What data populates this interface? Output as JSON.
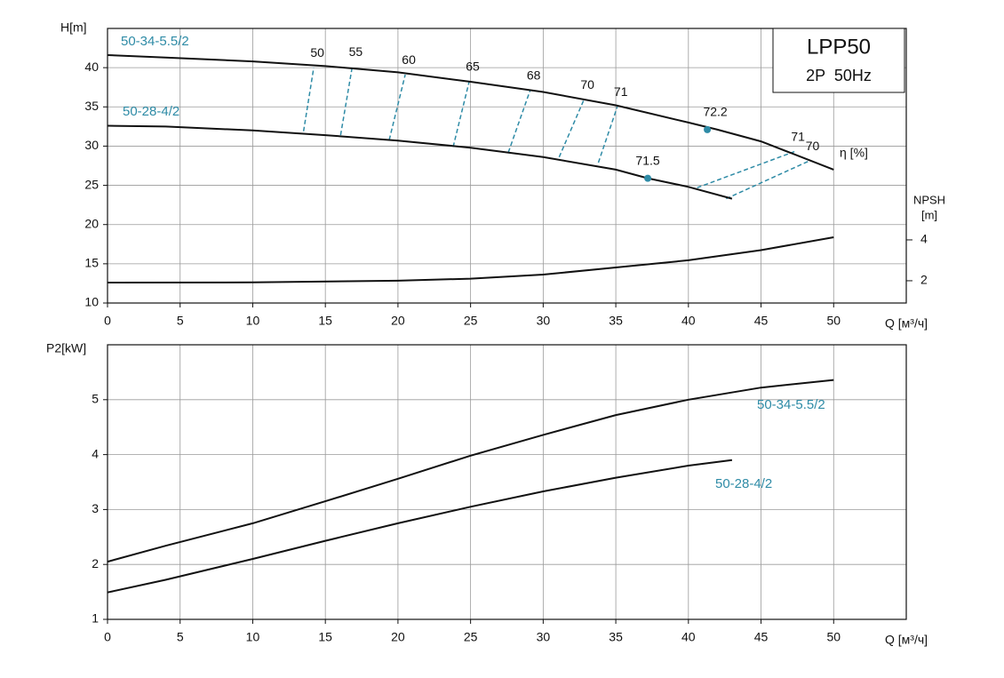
{
  "chart_data": [
    {
      "type": "line",
      "title": "LPP50",
      "subtitle": "2P  50Hz",
      "ylabel": "H[m]",
      "xlabel": "Q [м³/ч]",
      "xlim": [
        0,
        55
      ],
      "xticks": [
        0,
        5,
        10,
        15,
        20,
        25,
        30,
        35,
        40,
        45,
        50
      ],
      "ylim": [
        10,
        45
      ],
      "yticks": [
        10,
        15,
        20,
        25,
        30,
        35,
        40
      ],
      "y2label": "NPSH",
      "y2unit": "[m]",
      "y2lim": [
        0.91,
        14.35
      ],
      "y2ticks": [
        2,
        4
      ],
      "grid": true,
      "series": [
        {
          "name": "50-34-5.5/2",
          "color": "#111111",
          "label_color": "#2e8ba6",
          "x": [
            0,
            4,
            10,
            15,
            20,
            25,
            30,
            35,
            40,
            42,
            45,
            50
          ],
          "values": [
            41.6,
            41.3,
            40.8,
            40.2,
            39.4,
            38.2,
            36.9,
            35.2,
            33.0,
            32.1,
            30.6,
            27.0
          ]
        },
        {
          "name": "50-28-4/2",
          "color": "#111111",
          "label_color": "#2e8ba6",
          "x": [
            0,
            4,
            10,
            15,
            20,
            25,
            30,
            35,
            37.2,
            40,
            43
          ],
          "values": [
            32.6,
            32.5,
            32.0,
            31.4,
            30.7,
            29.8,
            28.6,
            27.0,
            25.9,
            24.8,
            23.3
          ]
        },
        {
          "axis": "y2",
          "color": "#111111",
          "x": [
            0,
            10,
            20,
            25,
            30,
            35,
            40,
            45,
            50
          ],
          "values": [
            1.91,
            1.92,
            2.0,
            2.1,
            2.3,
            2.65,
            3.0,
            3.5,
            4.13
          ]
        }
      ],
      "efficiency_label": "η [%]",
      "efficiency_color": "#2e8ba6",
      "efficiency_lines": [
        {
          "value": 50,
          "x": [
            13.5,
            14.2
          ],
          "y": [
            31.9,
            40.0
          ]
        },
        {
          "value": 55,
          "x": [
            16.05,
            16.85
          ],
          "y": [
            31.4,
            40.1
          ]
        },
        {
          "value": 60,
          "x": [
            19.4,
            20.5
          ],
          "y": [
            30.8,
            39.1
          ]
        },
        {
          "value": 65,
          "x": [
            23.8,
            24.9
          ],
          "y": [
            29.9,
            38.2
          ]
        },
        {
          "value": 68,
          "x": [
            27.6,
            29.1
          ],
          "y": [
            29.2,
            37.1
          ]
        },
        {
          "value": 70,
          "x": [
            31.1,
            32.8
          ],
          "y": [
            28.6,
            35.9
          ]
        },
        {
          "value": 71,
          "x": [
            33.8,
            35.1
          ],
          "y": [
            27.9,
            35.0
          ]
        },
        {
          "value": 71,
          "x": [
            40.6,
            47.3
          ],
          "y": [
            24.7,
            29.3
          ]
        },
        {
          "value": 70,
          "x": [
            42.6,
            48.3
          ],
          "y": [
            23.3,
            28.1
          ]
        }
      ],
      "best_points": [
        {
          "value": 72.2,
          "x": 41.3,
          "y": 32.1
        },
        {
          "value": 71.5,
          "x": 37.2,
          "y": 25.9
        }
      ]
    },
    {
      "type": "line",
      "ylabel": "P2[kW]",
      "xlabel": "Q [м³/ч]",
      "xlim": [
        0,
        55
      ],
      "xticks": [
        0,
        5,
        10,
        15,
        20,
        25,
        30,
        35,
        40,
        45,
        50
      ],
      "ylim": [
        1,
        6
      ],
      "yticks": [
        1,
        2,
        3,
        4,
        5
      ],
      "grid": true,
      "series": [
        {
          "name": "50-34-5.5/2",
          "color": "#111111",
          "label_color": "#2e8ba6",
          "x": [
            0,
            4,
            10,
            15,
            20,
            25,
            30,
            35,
            40,
            45,
            50
          ],
          "values": [
            2.05,
            2.34,
            2.75,
            3.15,
            3.56,
            3.98,
            4.36,
            4.72,
            5.0,
            5.22,
            5.36
          ]
        },
        {
          "name": "50-28-4/2",
          "color": "#111111",
          "label_color": "#2e8ba6",
          "x": [
            0,
            4,
            10,
            15,
            20,
            25,
            30,
            35,
            40,
            43
          ],
          "values": [
            1.49,
            1.72,
            2.1,
            2.43,
            2.75,
            3.05,
            3.33,
            3.58,
            3.8,
            3.9
          ]
        }
      ]
    }
  ]
}
